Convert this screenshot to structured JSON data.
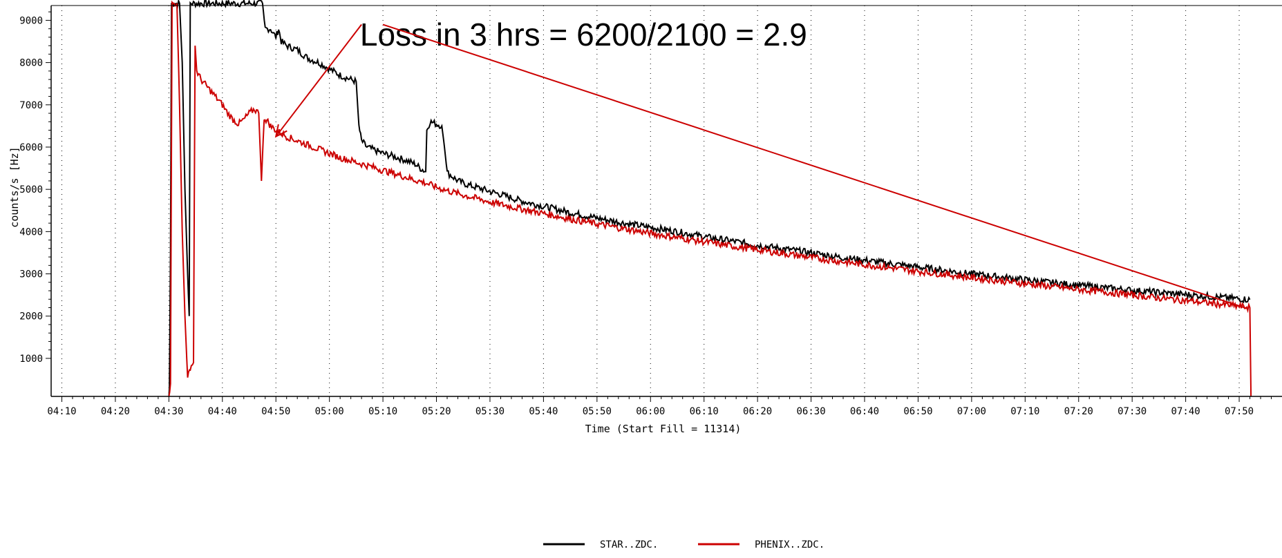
{
  "chart_data": {
    "type": "line",
    "title": "",
    "xlabel": "Time (Start Fill = 11314)",
    "ylabel": "counts/s [Hz]",
    "x_ticks": [
      "04:10",
      "04:20",
      "04:30",
      "04:40",
      "04:50",
      "05:00",
      "05:10",
      "05:20",
      "05:30",
      "05:40",
      "05:50",
      "06:00",
      "06:10",
      "06:20",
      "06:30",
      "06:40",
      "06:50",
      "07:00",
      "07:10",
      "07:20",
      "07:30",
      "07:40",
      "07:50"
    ],
    "x_range_minutes": [
      248,
      478
    ],
    "y_ticks": [
      1000,
      2000,
      3000,
      4000,
      5000,
      6000,
      7000,
      8000,
      9000
    ],
    "ylim": [
      100,
      9350
    ],
    "grid": "vertical-dotted",
    "legend_position": "bottom-center",
    "series": [
      {
        "name": "STAR..ZDC.",
        "color": "#000000",
        "points": [
          [
            270.0,
            0
          ],
          [
            270.1,
            300
          ],
          [
            270.3,
            3500
          ],
          [
            270.5,
            9400
          ],
          [
            272.0,
            9400
          ],
          [
            272.5,
            8000
          ],
          [
            273.0,
            5000
          ],
          [
            273.5,
            3000
          ],
          [
            273.8,
            2000
          ],
          [
            274.0,
            9400
          ],
          [
            274.4,
            9400
          ],
          [
            287.5,
            9400
          ],
          [
            288.0,
            8800
          ],
          [
            289.0,
            8800
          ],
          [
            290.0,
            8600
          ],
          [
            290.5,
            8800
          ],
          [
            291.0,
            8500
          ],
          [
            292,
            8400
          ],
          [
            294,
            8300
          ],
          [
            296,
            8100
          ],
          [
            298,
            8000
          ],
          [
            300,
            7850
          ],
          [
            302,
            7700
          ],
          [
            304,
            7600
          ],
          [
            305,
            7550
          ],
          [
            305.5,
            6500
          ],
          [
            306,
            6150
          ],
          [
            307,
            6000
          ],
          [
            308,
            5950
          ],
          [
            310,
            5850
          ],
          [
            312,
            5780
          ],
          [
            314,
            5700
          ],
          [
            316,
            5600
          ],
          [
            317,
            5500
          ],
          [
            318,
            5420
          ],
          [
            318.2,
            6400
          ],
          [
            318.8,
            6600
          ],
          [
            320,
            6550
          ],
          [
            321,
            6500
          ],
          [
            321.5,
            6000
          ],
          [
            322,
            5400
          ],
          [
            324,
            5200
          ],
          [
            326,
            5100
          ],
          [
            328,
            5030
          ],
          [
            330,
            4950
          ],
          [
            332,
            4880
          ],
          [
            334,
            4800
          ],
          [
            336,
            4720
          ],
          [
            338,
            4660
          ],
          [
            340,
            4600
          ],
          [
            345,
            4450
          ],
          [
            350,
            4320
          ],
          [
            355,
            4200
          ],
          [
            360,
            4100
          ],
          [
            365,
            4000
          ],
          [
            370,
            3880
          ],
          [
            375,
            3780
          ],
          [
            380,
            3680
          ],
          [
            385,
            3590
          ],
          [
            390,
            3500
          ],
          [
            395,
            3400
          ],
          [
            400,
            3320
          ],
          [
            405,
            3240
          ],
          [
            410,
            3160
          ],
          [
            415,
            3080
          ],
          [
            420,
            3000
          ],
          [
            425,
            2930
          ],
          [
            430,
            2860
          ],
          [
            435,
            2790
          ],
          [
            440,
            2730
          ],
          [
            445,
            2670
          ],
          [
            450,
            2610
          ],
          [
            455,
            2560
          ],
          [
            460,
            2510
          ],
          [
            465,
            2460
          ],
          [
            470,
            2410
          ],
          [
            472,
            2390
          ]
        ]
      },
      {
        "name": "PHENIX..ZDC.",
        "color": "#cc0000",
        "points": [
          [
            270.0,
            0
          ],
          [
            270.3,
            400
          ],
          [
            270.6,
            9400
          ],
          [
            271.5,
            9400
          ],
          [
            272.0,
            7000
          ],
          [
            272.5,
            4000
          ],
          [
            273.0,
            2000
          ],
          [
            273.5,
            500
          ],
          [
            274.0,
            800
          ],
          [
            274.6,
            900
          ],
          [
            274.9,
            8400
          ],
          [
            275.2,
            7800
          ],
          [
            276,
            7600
          ],
          [
            277,
            7450
          ],
          [
            278,
            7300
          ],
          [
            279,
            7150
          ],
          [
            280,
            7000
          ],
          [
            281,
            6800
          ],
          [
            282,
            6650
          ],
          [
            283,
            6550
          ],
          [
            284,
            6650
          ],
          [
            285,
            6800
          ],
          [
            286,
            6900
          ],
          [
            286.8,
            6800
          ],
          [
            287.3,
            5200
          ],
          [
            287.8,
            6700
          ],
          [
            288.5,
            6600
          ],
          [
            289,
            6500
          ],
          [
            290,
            6400
          ],
          [
            292,
            6250
          ],
          [
            294,
            6150
          ],
          [
            296,
            6050
          ],
          [
            298,
            5950
          ],
          [
            300,
            5850
          ],
          [
            302,
            5750
          ],
          [
            304,
            5680
          ],
          [
            306,
            5600
          ],
          [
            308,
            5530
          ],
          [
            310,
            5450
          ],
          [
            312,
            5380
          ],
          [
            314,
            5300
          ],
          [
            316,
            5220
          ],
          [
            318,
            5150
          ],
          [
            320,
            5050
          ],
          [
            322,
            4970
          ],
          [
            324,
            4900
          ],
          [
            326,
            4830
          ],
          [
            328,
            4770
          ],
          [
            330,
            4700
          ],
          [
            335,
            4560
          ],
          [
            340,
            4430
          ],
          [
            345,
            4300
          ],
          [
            350,
            4180
          ],
          [
            355,
            4070
          ],
          [
            360,
            3960
          ],
          [
            365,
            3860
          ],
          [
            370,
            3760
          ],
          [
            375,
            3660
          ],
          [
            380,
            3570
          ],
          [
            385,
            3480
          ],
          [
            390,
            3390
          ],
          [
            395,
            3300
          ],
          [
            400,
            3220
          ],
          [
            405,
            3140
          ],
          [
            410,
            3060
          ],
          [
            415,
            2990
          ],
          [
            420,
            2910
          ],
          [
            425,
            2840
          ],
          [
            430,
            2770
          ],
          [
            435,
            2700
          ],
          [
            440,
            2630
          ],
          [
            445,
            2570
          ],
          [
            450,
            2500
          ],
          [
            455,
            2430
          ],
          [
            460,
            2370
          ],
          [
            465,
            2300
          ],
          [
            470,
            2230
          ],
          [
            472,
            2200
          ],
          [
            472.2,
            0
          ]
        ]
      }
    ],
    "annotations": [
      {
        "text": "Loss in 3 hrs = 6200/2100 = 2.9",
        "color": "#000000",
        "pointers": [
          {
            "from": [
              306,
              8900
            ],
            "to": [
              290,
              6250
            ]
          },
          {
            "from": [
              310,
              8900
            ],
            "to": [
              471.5,
              2180
            ]
          }
        ],
        "pointer_color": "#cc0000",
        "anchor": [
          307,
          9000
        ]
      }
    ]
  }
}
